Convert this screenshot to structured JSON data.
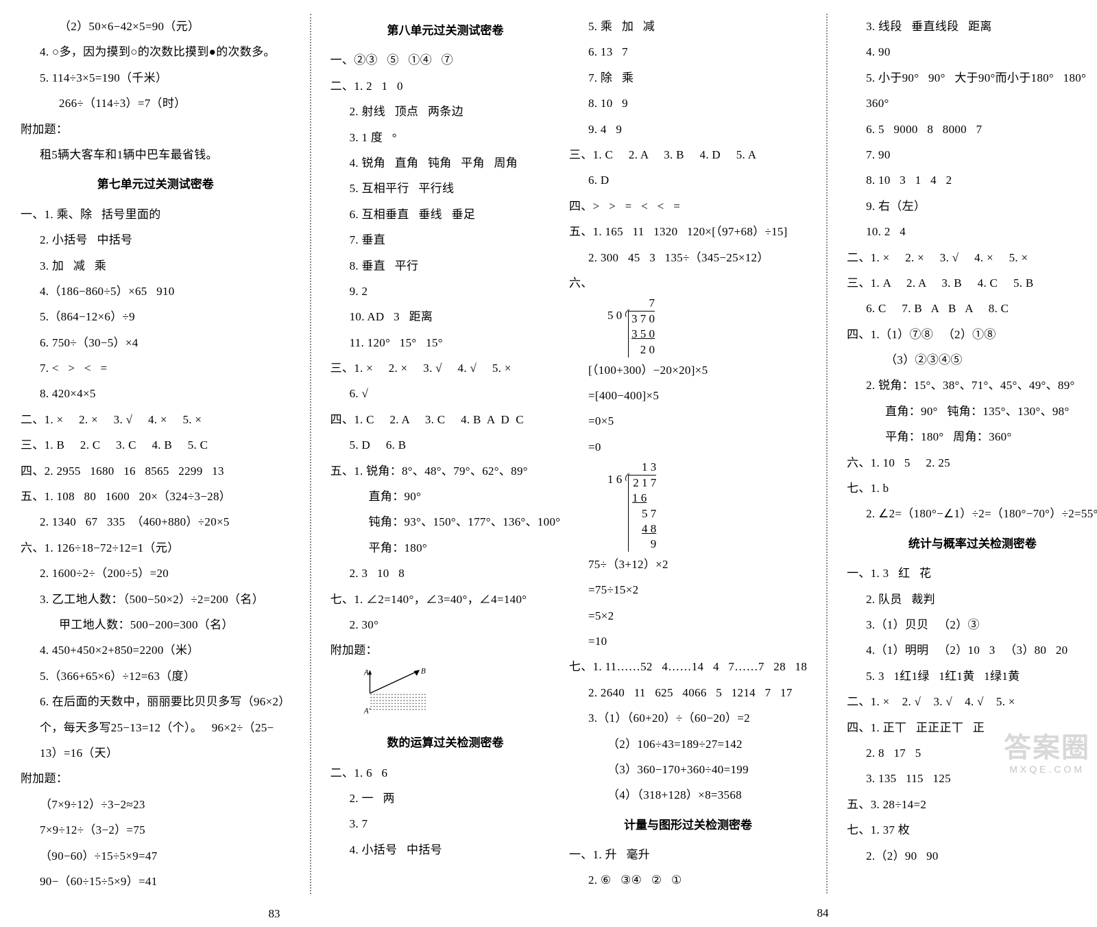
{
  "pageLeft": {
    "col1": {
      "lines": [
        {
          "cls": "indent-2",
          "text": "（2）50×6−42×5=90（元）"
        },
        {
          "cls": "indent-1",
          "text": "4. ○多，因为摸到○的次数比摸到●的次数多。"
        },
        {
          "cls": "indent-1",
          "text": "5. 114÷3×5=190（千米）"
        },
        {
          "cls": "indent-2",
          "text": "266÷（114÷3）=7（时）"
        },
        {
          "cls": "no-indent",
          "text": "附加题："
        },
        {
          "cls": "indent-1",
          "text": "租5辆大客车和1辆中巴车最省钱。"
        }
      ],
      "title": "第七单元过关测试密卷",
      "lines2": [
        {
          "cls": "no-indent",
          "text": "一、1. 乘、除   括号里面的"
        },
        {
          "cls": "indent-1",
          "text": "2. 小括号   中括号"
        },
        {
          "cls": "indent-1",
          "text": "3. 加   减   乘"
        },
        {
          "cls": "indent-1",
          "text": "4.（186−860÷5）×65   910"
        },
        {
          "cls": "indent-1",
          "text": "5.（864−12×6）÷9"
        },
        {
          "cls": "indent-1",
          "text": "6. 750÷（30−5）×4"
        },
        {
          "cls": "indent-1",
          "text": "7. <   >   <   ="
        },
        {
          "cls": "indent-1",
          "text": "8. 420×4×5"
        },
        {
          "cls": "no-indent",
          "text": "二、1. ×     2. ×     3. √     4. ×     5. ×"
        },
        {
          "cls": "no-indent",
          "text": "三、1. B     2. C     3. C     4. B     5. C"
        },
        {
          "cls": "no-indent",
          "text": "四、2. 2955   1680   16   8565   2299   13"
        },
        {
          "cls": "no-indent",
          "text": "五、1. 108   80   1600   20×（324÷3−28）"
        },
        {
          "cls": "indent-1",
          "text": "2. 1340   67   335  （460+880）÷20×5"
        },
        {
          "cls": "no-indent",
          "text": "六、1. 126÷18−72÷12=1（元）"
        },
        {
          "cls": "indent-1",
          "text": "2. 1600÷2÷（200÷5）=20"
        },
        {
          "cls": "indent-1",
          "text": "3. 乙工地人数：（500−50×2）÷2=200（名）"
        },
        {
          "cls": "indent-2",
          "text": "甲工地人数：500−200=300（名）"
        },
        {
          "cls": "indent-1",
          "text": "4. 450+450×2+850=2200（米）"
        },
        {
          "cls": "indent-1",
          "text": "5.（366+65×6）÷12=63（度）"
        },
        {
          "cls": "indent-1",
          "text": "6. 在后面的天数中，丽丽要比贝贝多写（96×2）"
        },
        {
          "cls": "indent-1",
          "text": "个，每天多写25−13=12（个）。   96×2÷（25−"
        },
        {
          "cls": "indent-1",
          "text": "13）=16（天）"
        },
        {
          "cls": "no-indent",
          "text": "附加题："
        },
        {
          "cls": "indent-1",
          "text": "（7×9÷12）÷3−2≈23"
        },
        {
          "cls": "indent-1",
          "text": "7×9÷12÷（3−2）=75"
        },
        {
          "cls": "indent-1",
          "text": "（90−60）÷15÷5×9=47"
        },
        {
          "cls": "indent-1",
          "text": "90−（60÷15÷5×9）=41"
        }
      ]
    },
    "col2": {
      "title": "第八单元过关测试密卷",
      "lines": [
        {
          "cls": "no-indent",
          "text": "一、②③   ⑤   ①④   ⑦"
        },
        {
          "cls": "no-indent",
          "text": "二、1. 2   1   0"
        },
        {
          "cls": "indent-1",
          "text": "2. 射线   顶点   两条边"
        },
        {
          "cls": "indent-1",
          "text": "3. 1 度   °"
        },
        {
          "cls": "indent-1",
          "text": "4. 锐角   直角   钝角   平角   周角"
        },
        {
          "cls": "indent-1",
          "text": "5. 互相平行   平行线"
        },
        {
          "cls": "indent-1",
          "text": "6. 互相垂直   垂线   垂足"
        },
        {
          "cls": "indent-1",
          "text": "7. 垂直"
        },
        {
          "cls": "indent-1",
          "text": "8. 垂直   平行"
        },
        {
          "cls": "indent-1",
          "text": "9. 2"
        },
        {
          "cls": "indent-1",
          "text": "10. AD   3   距离"
        },
        {
          "cls": "indent-1",
          "text": "11. 120°   15°   15°"
        },
        {
          "cls": "no-indent",
          "text": "三、1. ×     2. ×     3. √     4. √     5. ×"
        },
        {
          "cls": "indent-1",
          "text": "6. √"
        },
        {
          "cls": "no-indent",
          "text": "四、1. C     2. A     3. C     4. B  A  D  C"
        },
        {
          "cls": "indent-1",
          "text": "5. D     6. B"
        },
        {
          "cls": "no-indent",
          "text": "五、1. 锐角：8°、48°、79°、62°、89°"
        },
        {
          "cls": "indent-2",
          "text": "直角：90°"
        },
        {
          "cls": "indent-2",
          "text": "钝角：93°、150°、177°、136°、100°"
        },
        {
          "cls": "indent-2",
          "text": "平角：180°"
        },
        {
          "cls": "indent-1",
          "text": "2. 3   10   8"
        },
        {
          "cls": "no-indent",
          "text": "七、1. ∠2=140°，∠3=40°，∠4=140°"
        },
        {
          "cls": "indent-1",
          "text": "2. 30°"
        },
        {
          "cls": "no-indent",
          "text": "附加题："
        }
      ],
      "diagram": {
        "A_top": "A",
        "A_bot": "A'",
        "B": "B"
      },
      "title2": "数的运算过关检测密卷",
      "lines2": [
        {
          "cls": "no-indent",
          "text": "二、1. 6   6"
        },
        {
          "cls": "indent-1",
          "text": "2. 一   两"
        },
        {
          "cls": "indent-1",
          "text": "3. 7"
        },
        {
          "cls": "indent-1",
          "text": "4. 小括号   中括号"
        }
      ]
    },
    "pageNum": "83"
  },
  "pageRight": {
    "col1": {
      "lines": [
        {
          "cls": "indent-1",
          "text": "5. 乘   加   减"
        },
        {
          "cls": "indent-1",
          "text": "6. 13   7"
        },
        {
          "cls": "indent-1",
          "text": "7. 除   乘"
        },
        {
          "cls": "indent-1",
          "text": "8. 10   9"
        },
        {
          "cls": "indent-1",
          "text": "9. 4   9"
        },
        {
          "cls": "no-indent",
          "text": "三、1. C     2. A     3. B     4. D     5. A"
        },
        {
          "cls": "indent-1",
          "text": "6. D"
        },
        {
          "cls": "no-indent",
          "text": "四、>   >   =   <   <   ="
        },
        {
          "cls": "no-indent",
          "text": "五、1. 165   11   1320   120×[（97+68）÷15]"
        },
        {
          "cls": "indent-1",
          "text": "2. 300   45   3   135÷（345−25×12）"
        },
        {
          "cls": "no-indent",
          "text": "六、"
        }
      ],
      "longdiv1": {
        "divisor": "5 0",
        "quotient": "7",
        "dividend": "3 7 0",
        "sub1": "3 5 0",
        "rem1": "2 0"
      },
      "linesMid": [
        {
          "cls": "indent-1",
          "text": "[（100+300）−20×20]×5"
        },
        {
          "cls": "indent-1",
          "text": "=[400−400]×5"
        },
        {
          "cls": "indent-1",
          "text": "=0×5"
        },
        {
          "cls": "indent-1",
          "text": "=0"
        }
      ],
      "longdiv2": {
        "divisor": "1 6",
        "quotient": "1 3",
        "dividend": "2 1 7",
        "sub1": "1 6",
        "mid": "5 7",
        "sub2": "4 8",
        "rem": "9"
      },
      "linesMid2": [
        {
          "cls": "indent-1",
          "text": "75÷（3+12）×2"
        },
        {
          "cls": "indent-1",
          "text": "=75÷15×2"
        },
        {
          "cls": "indent-1",
          "text": "=5×2"
        },
        {
          "cls": "indent-1",
          "text": "=10"
        },
        {
          "cls": "no-indent",
          "text": "七、1. 11……52   4……14   4   7……7   28   18"
        },
        {
          "cls": "indent-1",
          "text": "2. 2640   11   625   4066   5   1214   7   17"
        },
        {
          "cls": "indent-1",
          "text": "3.（1）（60+20）÷（60−20）=2"
        },
        {
          "cls": "indent-2",
          "text": "（2）106÷43=189÷27=142"
        },
        {
          "cls": "indent-2",
          "text": "（3）360−170+360÷40=199"
        },
        {
          "cls": "indent-2",
          "text": "（4）（318+128）×8=3568"
        }
      ],
      "title": "计量与图形过关检测密卷",
      "lines2": [
        {
          "cls": "no-indent",
          "text": "一、1. 升   毫升"
        },
        {
          "cls": "indent-1",
          "text": "2. ⑥   ③④   ②   ①"
        }
      ]
    },
    "col2": {
      "lines": [
        {
          "cls": "indent-1",
          "text": "3. 线段   垂直线段   距离"
        },
        {
          "cls": "indent-1",
          "text": "4. 90"
        },
        {
          "cls": "indent-1",
          "text": "5. 小于90°   90°   大于90°而小于180°   180°"
        },
        {
          "cls": "indent-1",
          "text": "360°"
        },
        {
          "cls": "indent-1",
          "text": "6. 5   9000   8   8000   7"
        },
        {
          "cls": "indent-1",
          "text": "7. 90"
        },
        {
          "cls": "indent-1",
          "text": "8. 10   3   1   4   2"
        },
        {
          "cls": "indent-1",
          "text": "9. 右（左）"
        },
        {
          "cls": "indent-1",
          "text": "10. 2   4"
        },
        {
          "cls": "no-indent",
          "text": "二、1. ×     2. ×     3. √     4. ×     5. ×"
        },
        {
          "cls": "no-indent",
          "text": "三、1. A     2. A     3. B     4. C     5. B"
        },
        {
          "cls": "indent-1",
          "text": "6. C     7. B   A   B   A     8. C"
        },
        {
          "cls": "no-indent",
          "text": "四、1.（1）⑦⑧   （2）①⑧"
        },
        {
          "cls": "indent-2",
          "text": "（3）②③④⑤"
        },
        {
          "cls": "indent-1",
          "text": "2. 锐角：15°、38°、71°、45°、49°、89°"
        },
        {
          "cls": "indent-2",
          "text": "直角：90°   钝角：135°、130°、98°"
        },
        {
          "cls": "indent-2",
          "text": "平角：180°   周角：360°"
        },
        {
          "cls": "no-indent",
          "text": "六、1. 10   5     2. 25"
        },
        {
          "cls": "no-indent",
          "text": "七、1. b"
        },
        {
          "cls": "indent-1",
          "text": "2. ∠2=（180°−∠1）÷2=（180°−70°）÷2=55°"
        }
      ],
      "title": "统计与概率过关检测密卷",
      "lines2": [
        {
          "cls": "no-indent",
          "text": "一、1. 3   红   花"
        },
        {
          "cls": "indent-1",
          "text": "2. 队员   裁判"
        },
        {
          "cls": "indent-1",
          "text": "3.（1）贝贝   （2）③"
        },
        {
          "cls": "indent-1",
          "text": "4.（1）明明   （2）10   3   （3）80   20"
        },
        {
          "cls": "indent-1",
          "text": "5. 3   1红1绿   1红1黄   1绿1黄"
        },
        {
          "cls": "no-indent",
          "text": "二、1. ×    2. √    3. √    4. √    5. ×"
        },
        {
          "cls": "no-indent",
          "text": "四、1. 正丅   正正正丅   正"
        },
        {
          "cls": "indent-1",
          "text": "2. 8   17   5"
        },
        {
          "cls": "indent-1",
          "text": "3. 135   115   125"
        },
        {
          "cls": "no-indent",
          "text": "五、3. 28÷14=2"
        },
        {
          "cls": "no-indent",
          "text": "七、1. 37 枚"
        },
        {
          "cls": "indent-1",
          "text": "2.（2）90   90"
        }
      ]
    },
    "pageNum": "84"
  },
  "watermark": "答案圈",
  "mxqe": "MXQE.COM"
}
